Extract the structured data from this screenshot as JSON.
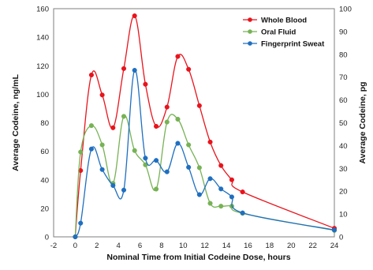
{
  "chart_data": {
    "type": "line",
    "xlabel": "Nominal Time from Initial Codeine Dose, hours",
    "ylabel_left": "Average Codeine, ng/mL",
    "ylabel_right": "Average Codeine, pg",
    "x_ticks": [
      -2,
      0,
      2,
      4,
      6,
      8,
      10,
      12,
      14,
      16,
      18,
      20,
      22,
      24
    ],
    "y_left_ticks": [
      0,
      20,
      40,
      60,
      80,
      100,
      120,
      140,
      160
    ],
    "y_right_ticks": [
      0,
      10,
      20,
      30,
      40,
      50,
      60,
      70,
      80,
      90,
      100
    ],
    "xlim": [
      -2,
      24
    ],
    "ylim_left": [
      0,
      160
    ],
    "ylim_right": [
      0,
      100
    ],
    "grid": false,
    "legend_position": "top-right",
    "series": [
      {
        "name": "Whole Blood",
        "axis": "left",
        "color": "#e8141c",
        "marker": "circle",
        "x": [
          0,
          0.5,
          1.5,
          2.5,
          3.5,
          4.5,
          5.5,
          6.5,
          7.5,
          8.5,
          9.5,
          10.5,
          11.5,
          12.5,
          13.5,
          14.5,
          15.5,
          24
        ],
        "y": [
          0,
          46.5,
          113.5,
          99.5,
          76.5,
          118,
          155,
          107,
          77.5,
          91,
          126.5,
          117.5,
          92,
          66.5,
          50,
          40,
          31.5,
          6
        ]
      },
      {
        "name": "Oral Fluid",
        "axis": "left",
        "color": "#77b255",
        "marker": "circle",
        "x": [
          0,
          0.5,
          1.5,
          2.5,
          3.5,
          4.5,
          5.5,
          6.5,
          7.5,
          8.5,
          9.5,
          10.5,
          11.5,
          12.5,
          13.5,
          14.5,
          15.5,
          24
        ],
        "y": [
          0,
          59.5,
          78,
          64.5,
          37.5,
          84.5,
          60.5,
          50.5,
          33.5,
          80.5,
          82.5,
          64.5,
          48.5,
          23.5,
          21.5,
          21.5,
          16.5,
          4.5
        ]
      },
      {
        "name": "Fingerprint Sweat",
        "axis": "right",
        "color": "#1f6fc0",
        "marker": "circle",
        "x": [
          0,
          0.5,
          1.5,
          2.5,
          3.5,
          4.5,
          5.5,
          6.5,
          7.5,
          8.5,
          9.5,
          10.5,
          11.5,
          12.5,
          13.5,
          14.5,
          15.5,
          24
        ],
        "y": [
          0,
          6,
          38.5,
          29.5,
          22.5,
          20.5,
          73,
          34.5,
          33.5,
          28.5,
          41,
          30.5,
          18.5,
          25.5,
          21,
          17.5,
          10.5,
          3
        ]
      }
    ]
  }
}
